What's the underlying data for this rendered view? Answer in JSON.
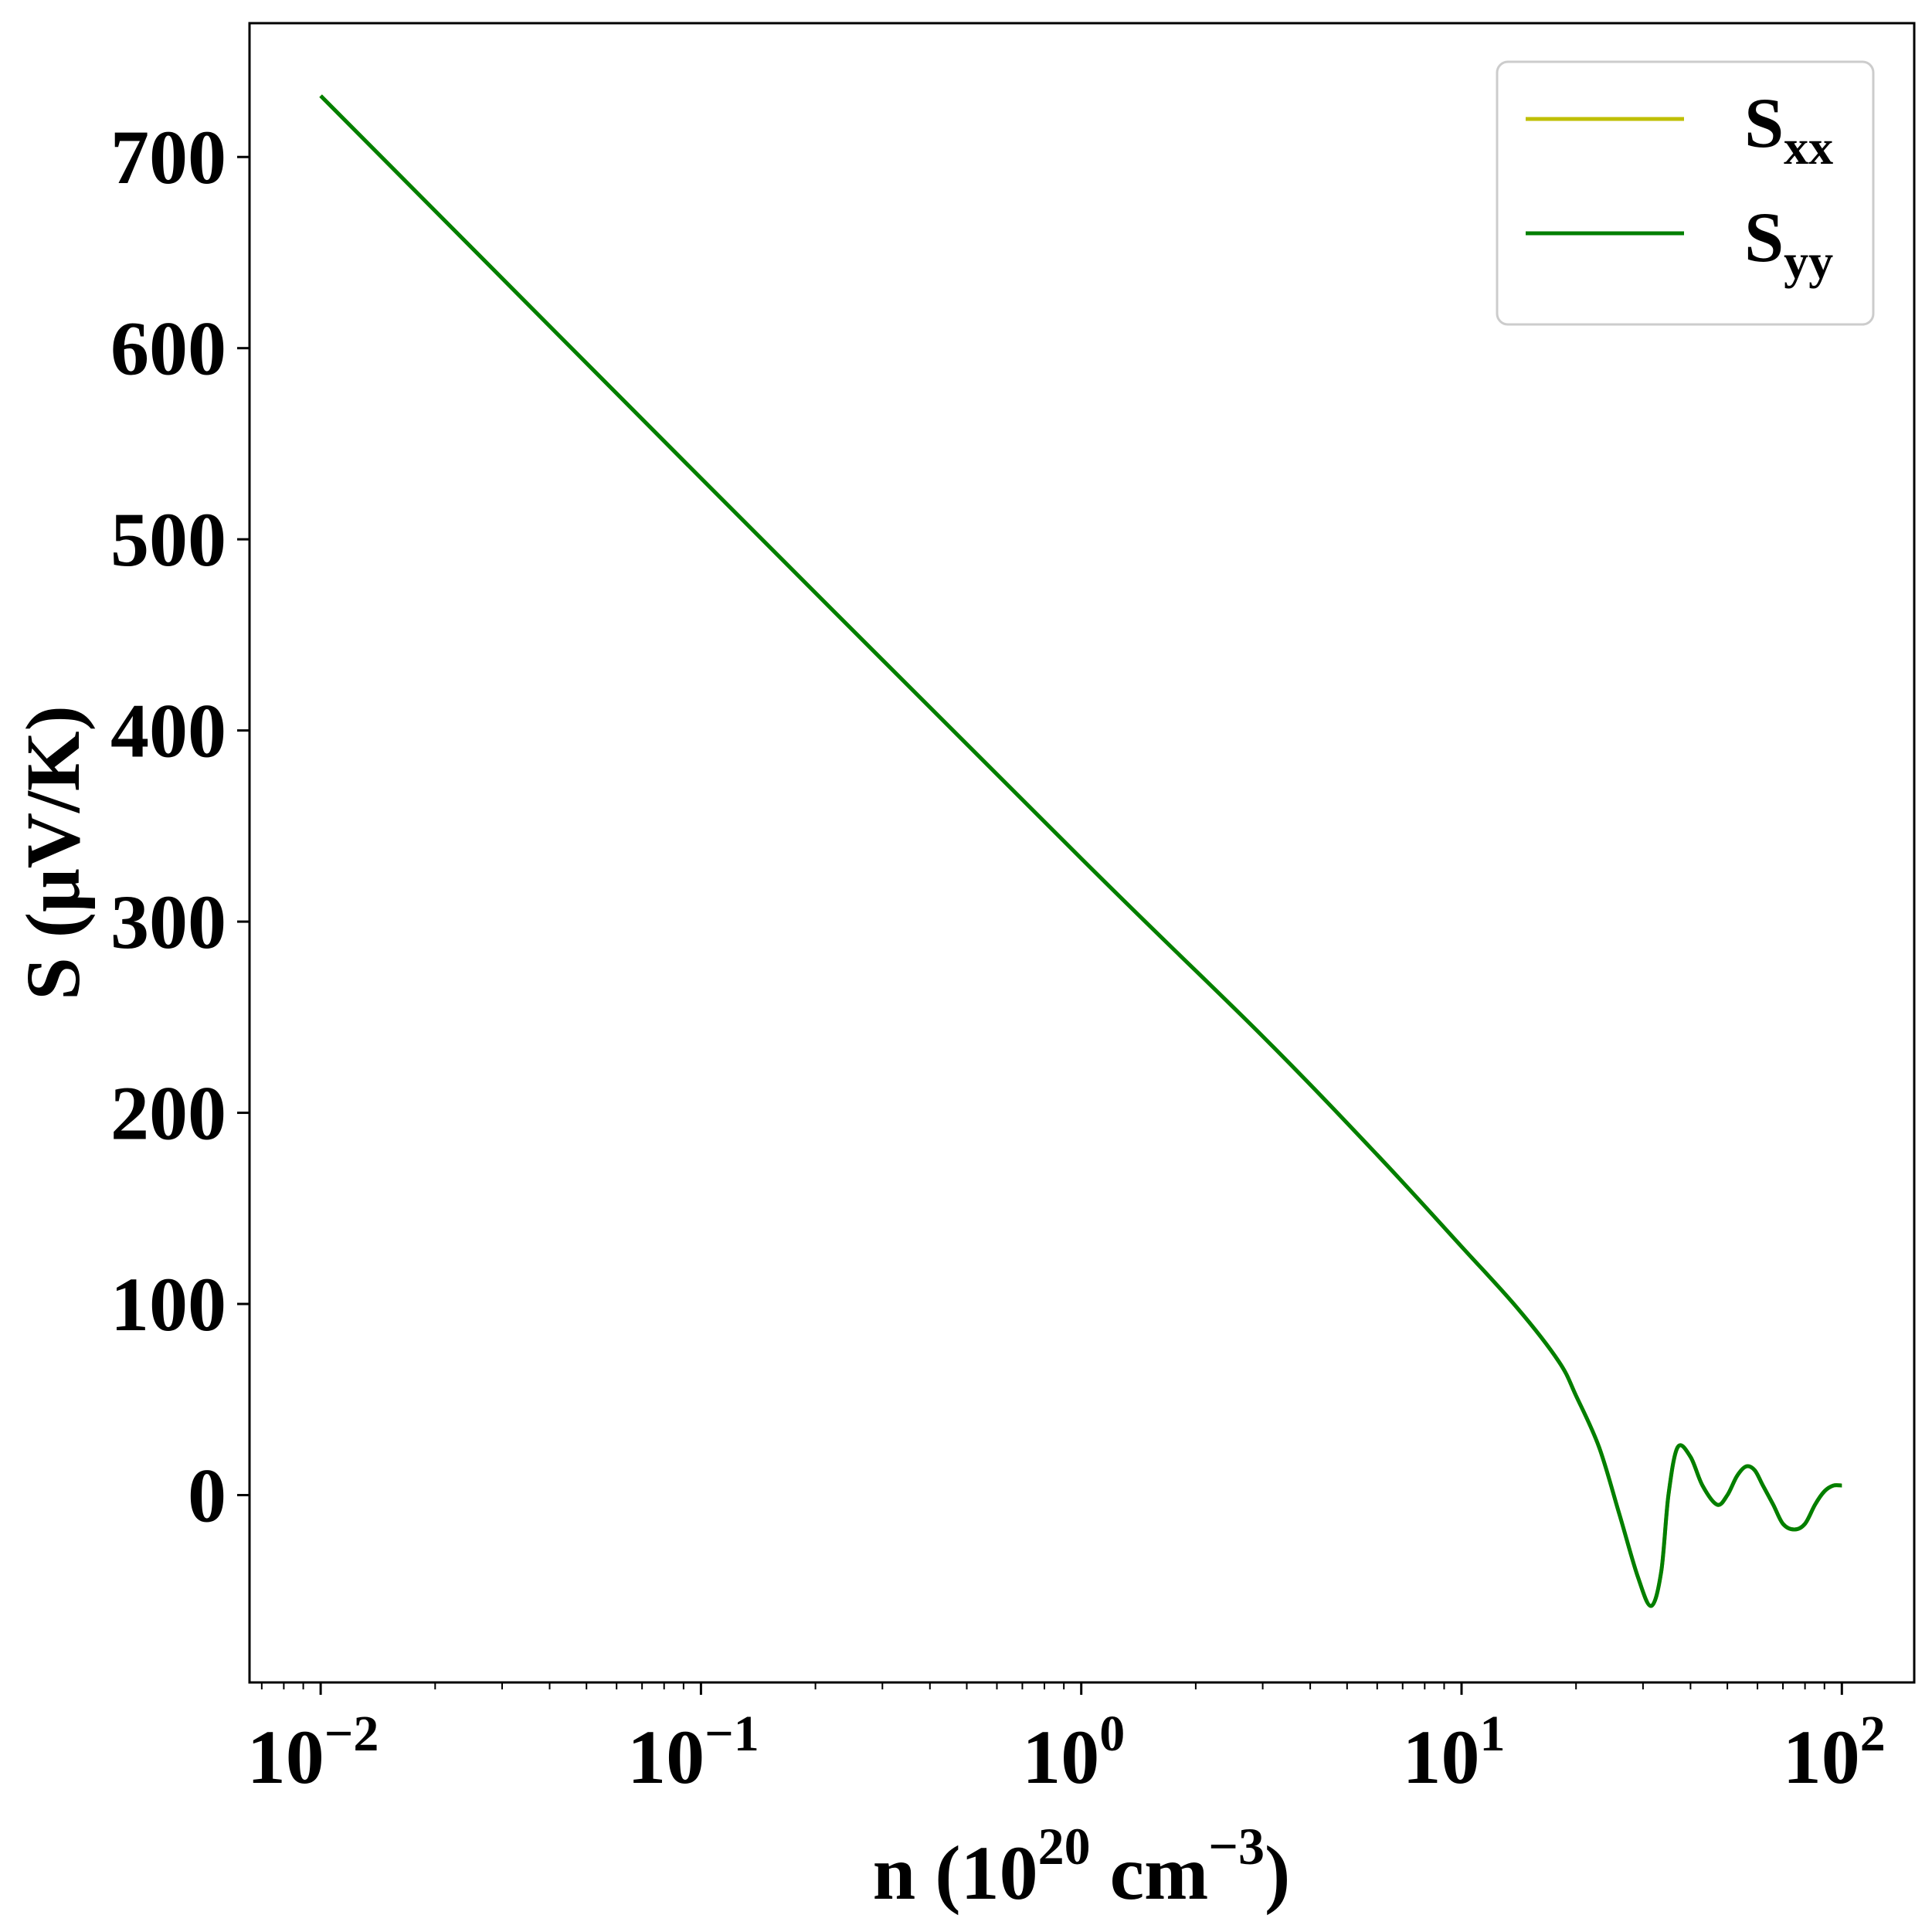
{
  "chart_data": {
    "type": "line",
    "xscale": "log",
    "xlim": [
      0.0065,
      155
    ],
    "ylim": [
      -98,
      770
    ],
    "xlabel": {
      "prefix": "n (10",
      "sup1": "20",
      "middle": " cm",
      "sup2": "−3",
      "suffix": ")"
    },
    "ylabel": "S (μV/K)",
    "grid": false,
    "legend_position": "top-right",
    "yticks": [
      0,
      100,
      200,
      300,
      400,
      500,
      600,
      700
    ],
    "xticks": [
      {
        "value": 0.01,
        "base": "10",
        "exp": "−2"
      },
      {
        "value": 0.1,
        "base": "10",
        "exp": "−1"
      },
      {
        "value": 1,
        "base": "10",
        "exp": "0"
      },
      {
        "value": 10,
        "base": "10",
        "exp": "1"
      },
      {
        "value": 100,
        "base": "10",
        "exp": "2"
      }
    ],
    "series": [
      {
        "name": "S_xx",
        "label_main": "S",
        "label_sub": "xx",
        "color": "#bfbf00",
        "x": [
          0.01,
          0.1,
          1,
          3,
          6,
          10,
          14,
          18,
          20,
          23,
          26,
          29,
          31.5,
          33.5,
          35,
          37,
          40,
          43,
          47,
          50,
          53,
          56,
          59,
          62,
          66,
          70,
          75,
          80,
          85,
          90,
          95,
          100
        ],
        "y": [
          732,
          532,
          333,
          240,
          178,
          130,
          98,
          70,
          52,
          25,
          -10,
          -42,
          -58,
          -40,
          0,
          25,
          20,
          5,
          -5,
          0,
          10,
          15,
          13,
          5,
          -5,
          -15,
          -18,
          -15,
          -5,
          2,
          5,
          5
        ]
      },
      {
        "name": "S_yy",
        "label_main": "S",
        "label_sub": "yy",
        "color": "#007f00",
        "x": [
          0.01,
          0.1,
          1,
          3,
          6,
          10,
          14,
          18,
          20,
          23,
          26,
          29,
          31.5,
          33.5,
          35,
          37,
          40,
          43,
          47,
          50,
          53,
          56,
          59,
          62,
          66,
          70,
          75,
          80,
          85,
          90,
          95,
          100
        ],
        "y": [
          732,
          532,
          333,
          240,
          178,
          130,
          98,
          70,
          52,
          25,
          -10,
          -42,
          -58,
          -40,
          0,
          25,
          20,
          5,
          -5,
          0,
          10,
          15,
          13,
          5,
          -5,
          -15,
          -18,
          -15,
          -5,
          2,
          5,
          5
        ]
      }
    ]
  }
}
